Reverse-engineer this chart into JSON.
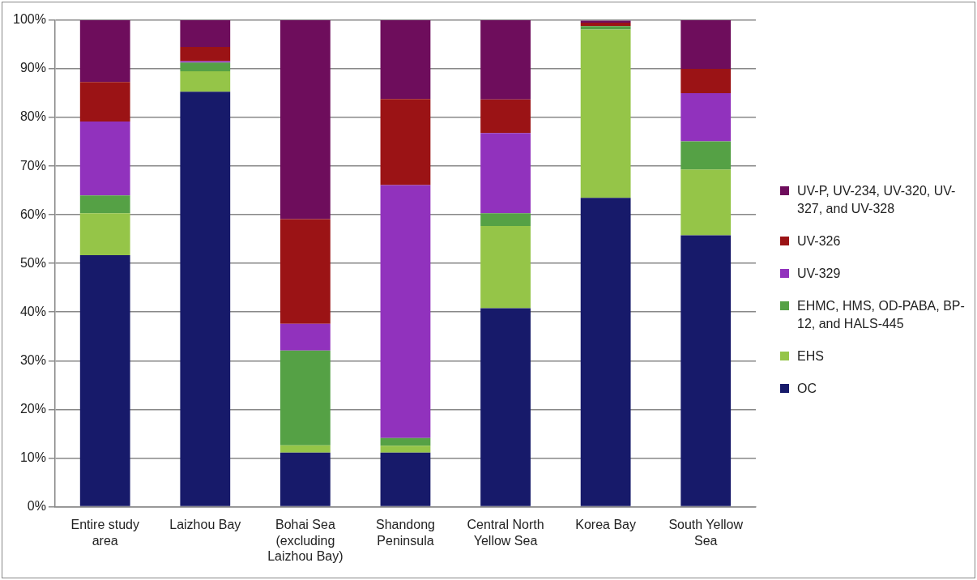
{
  "chart_data": {
    "type": "bar",
    "stacked": true,
    "categories": [
      "Entire study area",
      "Laizhou Bay",
      "Bohai Sea (excluding Laizhou Bay)",
      "Shandong Peninsula",
      "Central North Yellow Sea",
      "Korea Bay",
      "South Yellow Sea"
    ],
    "series": [
      {
        "name": "OC",
        "color": "#171a6a",
        "values": [
          51.7,
          85.3,
          11.1,
          11.1,
          40.8,
          63.5,
          55.8
        ]
      },
      {
        "name": "EHS",
        "color": "#95c548",
        "values": [
          8.6,
          4.2,
          1.5,
          1.4,
          16.9,
          34.6,
          13.5
        ]
      },
      {
        "name": "EHMC, HMS, OD-PABA, BP-12, and HALS-445",
        "color": "#55a145",
        "values": [
          3.7,
          1.8,
          19.5,
          1.6,
          2.6,
          0.7,
          5.8
        ]
      },
      {
        "name": "UV-329",
        "color": "#9132bd",
        "values": [
          15.2,
          0.3,
          5.5,
          52.0,
          16.5,
          null,
          9.9
        ]
      },
      {
        "name": "UV-326",
        "color": "#9b1315",
        "values": [
          8.1,
          2.9,
          21.5,
          17.7,
          6.9,
          0.7,
          5.0
        ]
      },
      {
        "name": "UV-P, UV-234, UV-320, UV-327, and UV-328",
        "color": "#6e0d5c",
        "values": [
          12.7,
          5.5,
          40.9,
          16.2,
          16.3,
          0.4,
          10.0
        ]
      }
    ],
    "ylim": [
      0,
      100
    ],
    "yticks": [
      {
        "value": 0,
        "label": "0%"
      },
      {
        "value": 10,
        "label": "10%"
      },
      {
        "value": 20,
        "label": "20%"
      },
      {
        "value": 30,
        "label": "30%"
      },
      {
        "value": 40,
        "label": "40%"
      },
      {
        "value": 50,
        "label": "50%"
      },
      {
        "value": 60,
        "label": "60%"
      },
      {
        "value": 70,
        "label": "70%"
      },
      {
        "value": 80,
        "label": "80%"
      },
      {
        "value": 90,
        "label": "90%"
      },
      {
        "value": 100,
        "label": "100%"
      }
    ],
    "grid": "y",
    "legend": "right"
  }
}
